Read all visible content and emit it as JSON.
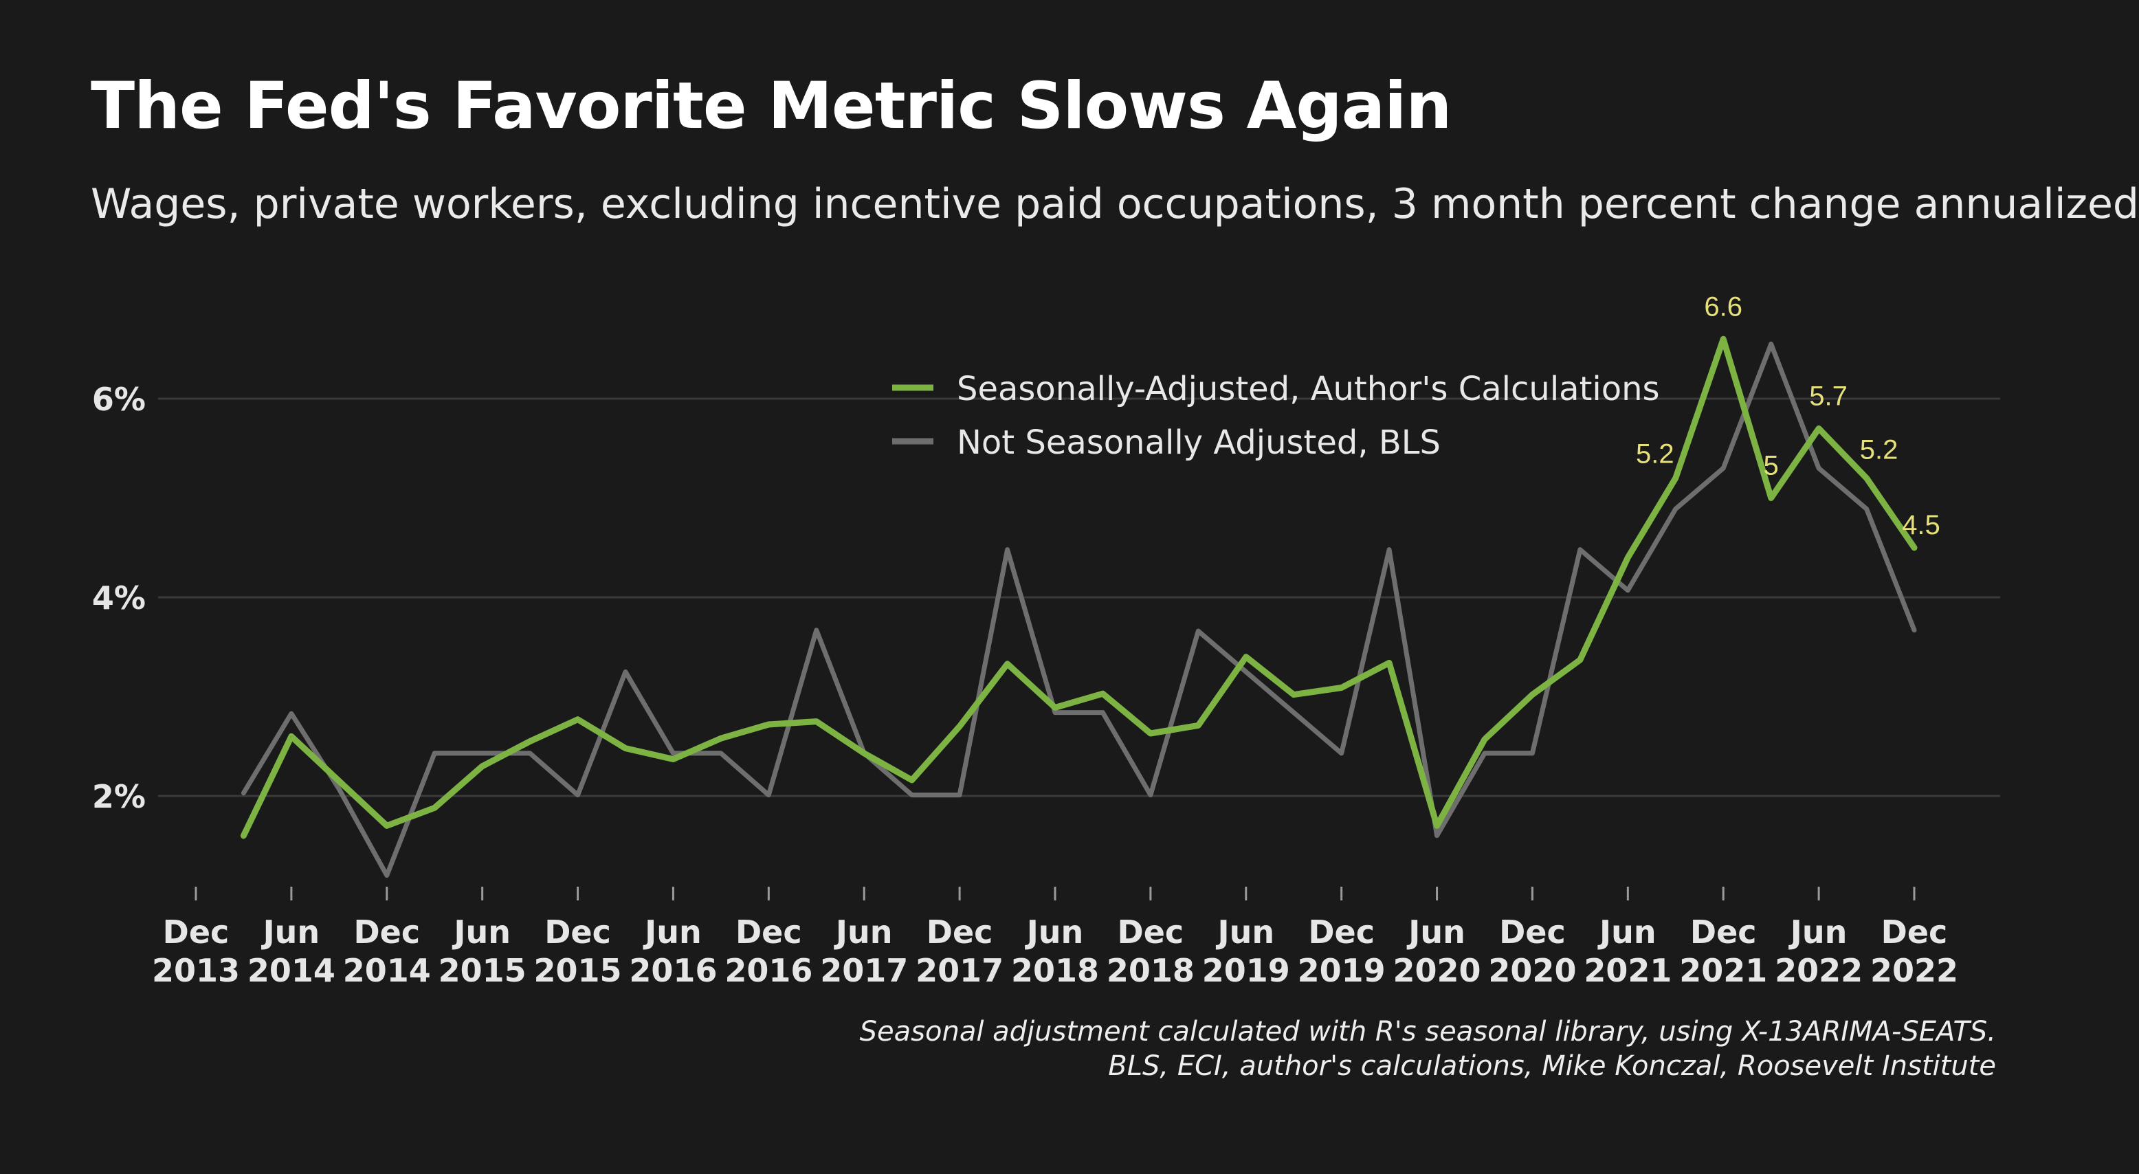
{
  "title": "The Fed's Favorite Metric Slows Again",
  "subtitle": "Wages, private workers, excluding incentive paid occupations, 3 month percent change annualized",
  "caption": {
    "line1": "Seasonal adjustment calculated with R's seasonal library, using X-13ARIMA-SEATS.",
    "line2": "BLS, ECI, author's calculations, Mike Konczal, Roosevelt Institute"
  },
  "colors": {
    "background": "#1a1a1a",
    "seasonally_adjusted": "#7cb342",
    "not_seasonally_adjusted": "#6e6e6e",
    "data_labels": "#e6e07a",
    "gridline": "#3a3a3a"
  },
  "chart_data": {
    "type": "line",
    "ylim": [
      0.9,
      7.1
    ],
    "y_ticks": [
      2,
      4,
      6
    ],
    "y_tick_labels": [
      "2%",
      "4%",
      "6%"
    ],
    "x_tick_labels": [
      {
        "month": "Dec",
        "year": "2013",
        "date": "2013-12"
      },
      {
        "month": "Jun",
        "year": "2014",
        "date": "2014-06"
      },
      {
        "month": "Dec",
        "year": "2014",
        "date": "2014-12"
      },
      {
        "month": "Jun",
        "year": "2015",
        "date": "2015-06"
      },
      {
        "month": "Dec",
        "year": "2015",
        "date": "2015-12"
      },
      {
        "month": "Jun",
        "year": "2016",
        "date": "2016-06"
      },
      {
        "month": "Dec",
        "year": "2016",
        "date": "2016-12"
      },
      {
        "month": "Jun",
        "year": "2017",
        "date": "2017-06"
      },
      {
        "month": "Dec",
        "year": "2017",
        "date": "2017-12"
      },
      {
        "month": "Jun",
        "year": "2018",
        "date": "2018-06"
      },
      {
        "month": "Dec",
        "year": "2018",
        "date": "2018-12"
      },
      {
        "month": "Jun",
        "year": "2019",
        "date": "2019-06"
      },
      {
        "month": "Dec",
        "year": "2019",
        "date": "2019-12"
      },
      {
        "month": "Jun",
        "year": "2020",
        "date": "2020-06"
      },
      {
        "month": "Dec",
        "year": "2020",
        "date": "2020-12"
      },
      {
        "month": "Jun",
        "year": "2021",
        "date": "2021-06"
      },
      {
        "month": "Dec",
        "year": "2021",
        "date": "2021-12"
      },
      {
        "month": "Jun",
        "year": "2022",
        "date": "2022-06"
      },
      {
        "month": "Dec",
        "year": "2022",
        "date": "2022-12"
      }
    ],
    "x": [
      "2014-03",
      "2014-06",
      "2014-09",
      "2014-12",
      "2015-03",
      "2015-06",
      "2015-09",
      "2015-12",
      "2016-03",
      "2016-06",
      "2016-09",
      "2016-12",
      "2017-03",
      "2017-06",
      "2017-09",
      "2017-12",
      "2018-03",
      "2018-06",
      "2018-09",
      "2018-12",
      "2019-03",
      "2019-06",
      "2019-09",
      "2019-12",
      "2020-03",
      "2020-06",
      "2020-09",
      "2020-12",
      "2021-03",
      "2021-06",
      "2021-09",
      "2021-12",
      "2022-03",
      "2022-06",
      "2022-09",
      "2022-12"
    ],
    "series": [
      {
        "name": "Seasonally-Adjusted, Author's Calculations",
        "color": "#7cb342",
        "values": [
          1.6,
          2.6,
          2.15,
          1.7,
          1.88,
          2.3,
          2.55,
          2.77,
          2.48,
          2.37,
          2.58,
          2.72,
          2.75,
          2.43,
          2.16,
          2.7,
          3.33,
          2.89,
          3.03,
          2.63,
          2.71,
          3.4,
          3.02,
          3.09,
          3.34,
          1.7,
          2.57,
          3.02,
          3.37,
          4.4,
          5.2,
          6.6,
          5.0,
          5.7,
          5.2,
          4.5
        ]
      },
      {
        "name": "Not Seasonally Adjusted, BLS",
        "color": "#6e6e6e",
        "values": [
          2.03,
          2.83,
          2.07,
          1.2,
          2.43,
          2.43,
          2.43,
          2.01,
          3.25,
          2.43,
          2.43,
          2.01,
          3.67,
          2.43,
          2.01,
          2.01,
          4.48,
          2.84,
          2.84,
          2.01,
          3.66,
          3.25,
          2.84,
          2.43,
          4.48,
          1.6,
          2.43,
          2.43,
          4.48,
          4.07,
          4.89,
          5.3,
          6.55,
          5.3,
          4.89,
          3.67
        ]
      }
    ],
    "data_labels": [
      {
        "series": 0,
        "x": "2021-09",
        "value": 5.2,
        "text": "5.2"
      },
      {
        "series": 0,
        "x": "2021-12",
        "value": 6.6,
        "text": "6.6"
      },
      {
        "series": 0,
        "x": "2022-03",
        "value": 5.0,
        "text": "5"
      },
      {
        "series": 0,
        "x": "2022-06",
        "value": 5.7,
        "text": "5.7"
      },
      {
        "series": 0,
        "x": "2022-09",
        "value": 5.2,
        "text": "5.2"
      },
      {
        "series": 0,
        "x": "2022-12",
        "value": 4.5,
        "text": "4.5"
      }
    ],
    "legend": {
      "position": "top-center",
      "items": [
        {
          "label": "Seasonally-Adjusted, Author's Calculations",
          "color": "#7cb342"
        },
        {
          "label": "Not Seasonally Adjusted, BLS",
          "color": "#6e6e6e"
        }
      ]
    },
    "grid": true
  }
}
